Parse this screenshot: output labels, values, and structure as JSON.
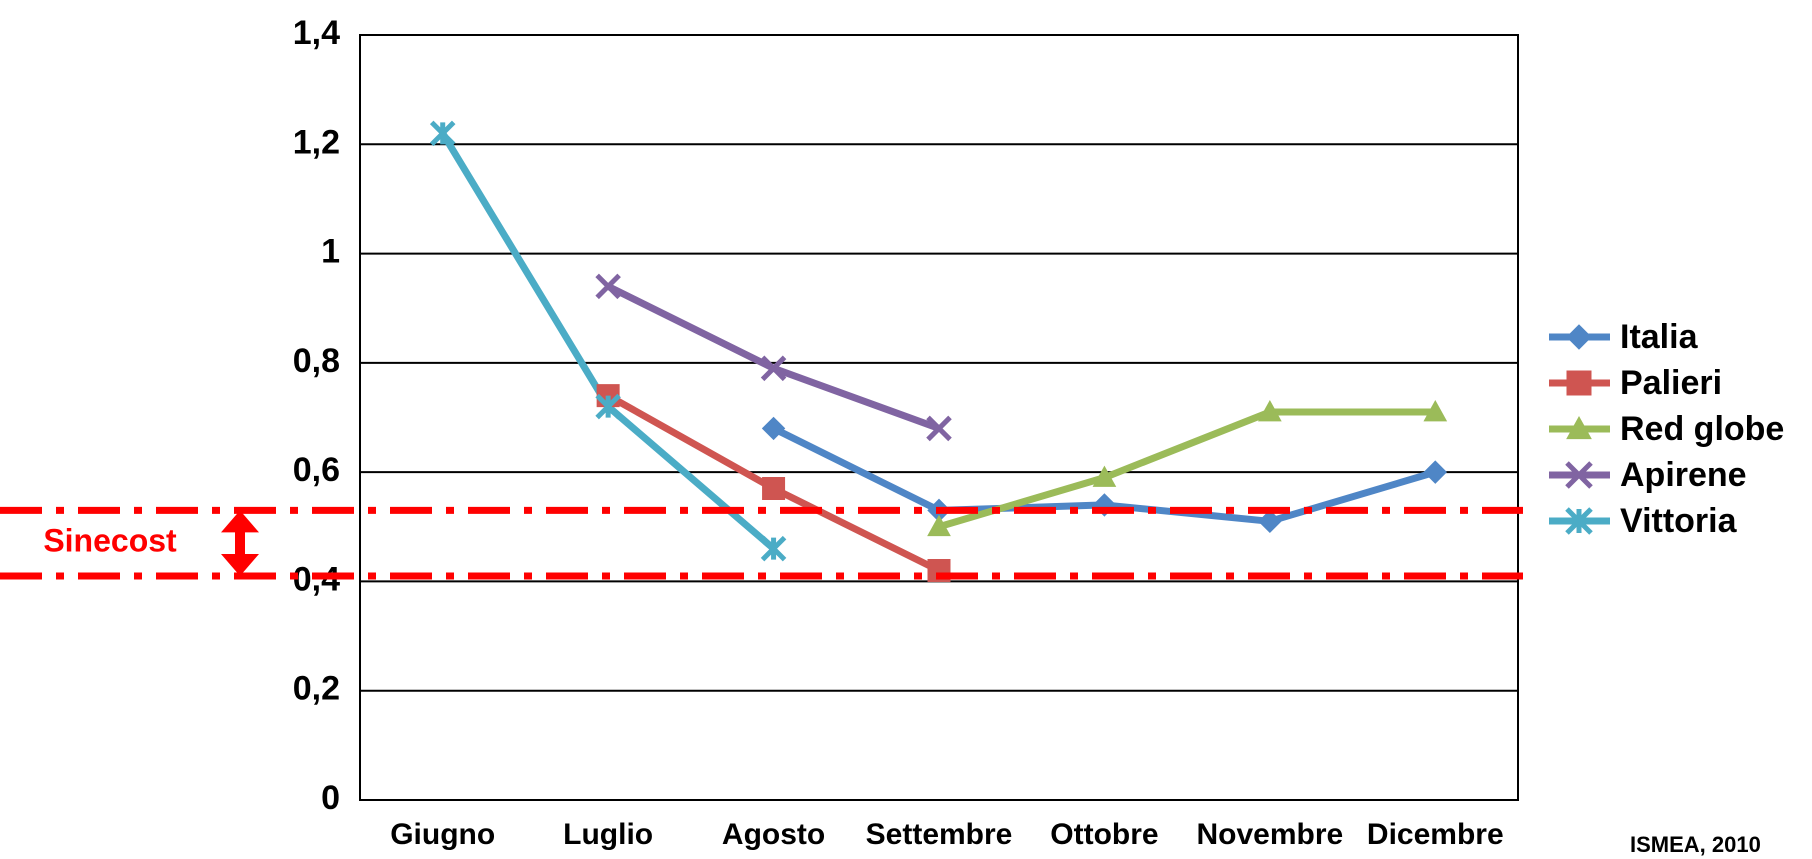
{
  "chart_data": {
    "type": "line",
    "categories": [
      "Giugno",
      "Luglio",
      "Agosto",
      "Settembre",
      "Ottobre",
      "Novembre",
      "Dicembre"
    ],
    "series": [
      {
        "name": "Italia",
        "color": "#4f86c6",
        "marker": "diamond",
        "values": [
          null,
          null,
          0.68,
          0.53,
          0.54,
          0.51,
          0.6
        ]
      },
      {
        "name": "Palieri",
        "color": "#cf5551",
        "marker": "square",
        "values": [
          null,
          0.74,
          0.57,
          0.42,
          null,
          null,
          null
        ]
      },
      {
        "name": "Red globe",
        "color": "#9bbb59",
        "marker": "triangle",
        "values": [
          null,
          null,
          null,
          0.5,
          0.59,
          0.71,
          0.71
        ]
      },
      {
        "name": "Apirene",
        "color": "#8064a2",
        "marker": "cross",
        "values": [
          null,
          0.94,
          0.79,
          0.68,
          null,
          null,
          null
        ]
      },
      {
        "name": "Vittoria",
        "color": "#4bacc6",
        "marker": "star",
        "values": [
          1.22,
          0.72,
          0.46,
          null,
          null,
          null,
          null
        ]
      }
    ],
    "ylim": [
      0,
      1.4
    ],
    "yticks": [
      0,
      {
        "value": 0.2,
        "label": "0,2"
      },
      {
        "value": 0.4,
        "label": "0,4"
      },
      {
        "value": 0.6,
        "label": "0,6"
      },
      {
        "value": 0.8,
        "label": "0,8"
      },
      1,
      {
        "value": 1.2,
        "label": "1,2"
      },
      {
        "value": 1.4,
        "label": "1,4"
      }
    ],
    "grid": true,
    "legend": "right",
    "annotation": {
      "text": "Sinecost",
      "color": "#ff0000",
      "lines": [
        0.53,
        0.41
      ]
    },
    "source": "ISMEA, 2010"
  }
}
